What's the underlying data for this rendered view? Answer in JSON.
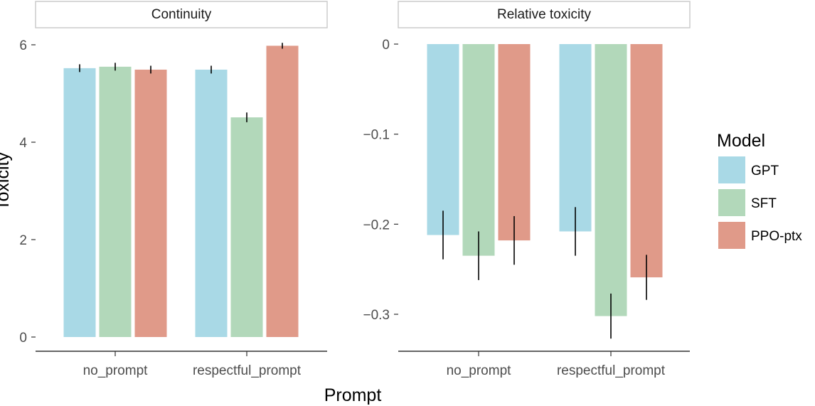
{
  "chart_data": [
    {
      "type": "bar",
      "panel": "Continuity",
      "categories": [
        "no_prompt",
        "respectful_prompt"
      ],
      "xlabel": "Prompt",
      "ylabel": "Toxicity",
      "ylim": [
        0,
        6
      ],
      "yticks": [
        0,
        2,
        4,
        6
      ],
      "yticklabels": [
        "0",
        "2",
        "4",
        "6"
      ],
      "series": [
        {
          "name": "GPT",
          "values": [
            5.52,
            5.49
          ],
          "error": [
            0.08,
            0.08
          ]
        },
        {
          "name": "SFT",
          "values": [
            5.55,
            4.51
          ],
          "error": [
            0.08,
            0.1
          ]
        },
        {
          "name": "PPO-ptx",
          "values": [
            5.49,
            5.98
          ],
          "error": [
            0.08,
            0.06
          ]
        }
      ],
      "grid": false
    },
    {
      "type": "bar",
      "panel": "Relative toxicity",
      "categories": [
        "no_prompt",
        "respectful_prompt"
      ],
      "xlabel": "Prompt",
      "ylim": [
        -0.3,
        0
      ],
      "yticks": [
        0,
        -0.1,
        -0.2,
        -0.3
      ],
      "yticklabels": [
        "0",
        "−0.1",
        "−0.2",
        "−0.3"
      ],
      "series": [
        {
          "name": "GPT",
          "values": [
            -0.212,
            -0.208
          ],
          "error": [
            0.027,
            0.027
          ]
        },
        {
          "name": "SFT",
          "values": [
            -0.235,
            -0.302
          ],
          "error": [
            0.027,
            0.025
          ]
        },
        {
          "name": "PPO-ptx",
          "values": [
            -0.218,
            -0.259
          ],
          "error": [
            0.027,
            0.025
          ]
        }
      ],
      "grid": false
    }
  ],
  "legend": {
    "title": "Model",
    "placement": "right",
    "items": [
      {
        "label": "GPT",
        "color": "#a9d9e6"
      },
      {
        "label": "SFT",
        "color": "#b2d8ba"
      },
      {
        "label": "PPO-ptx",
        "color": "#e09a89"
      }
    ]
  },
  "shared_xlabel": "Prompt",
  "shared_ylabel": "Toxicity"
}
